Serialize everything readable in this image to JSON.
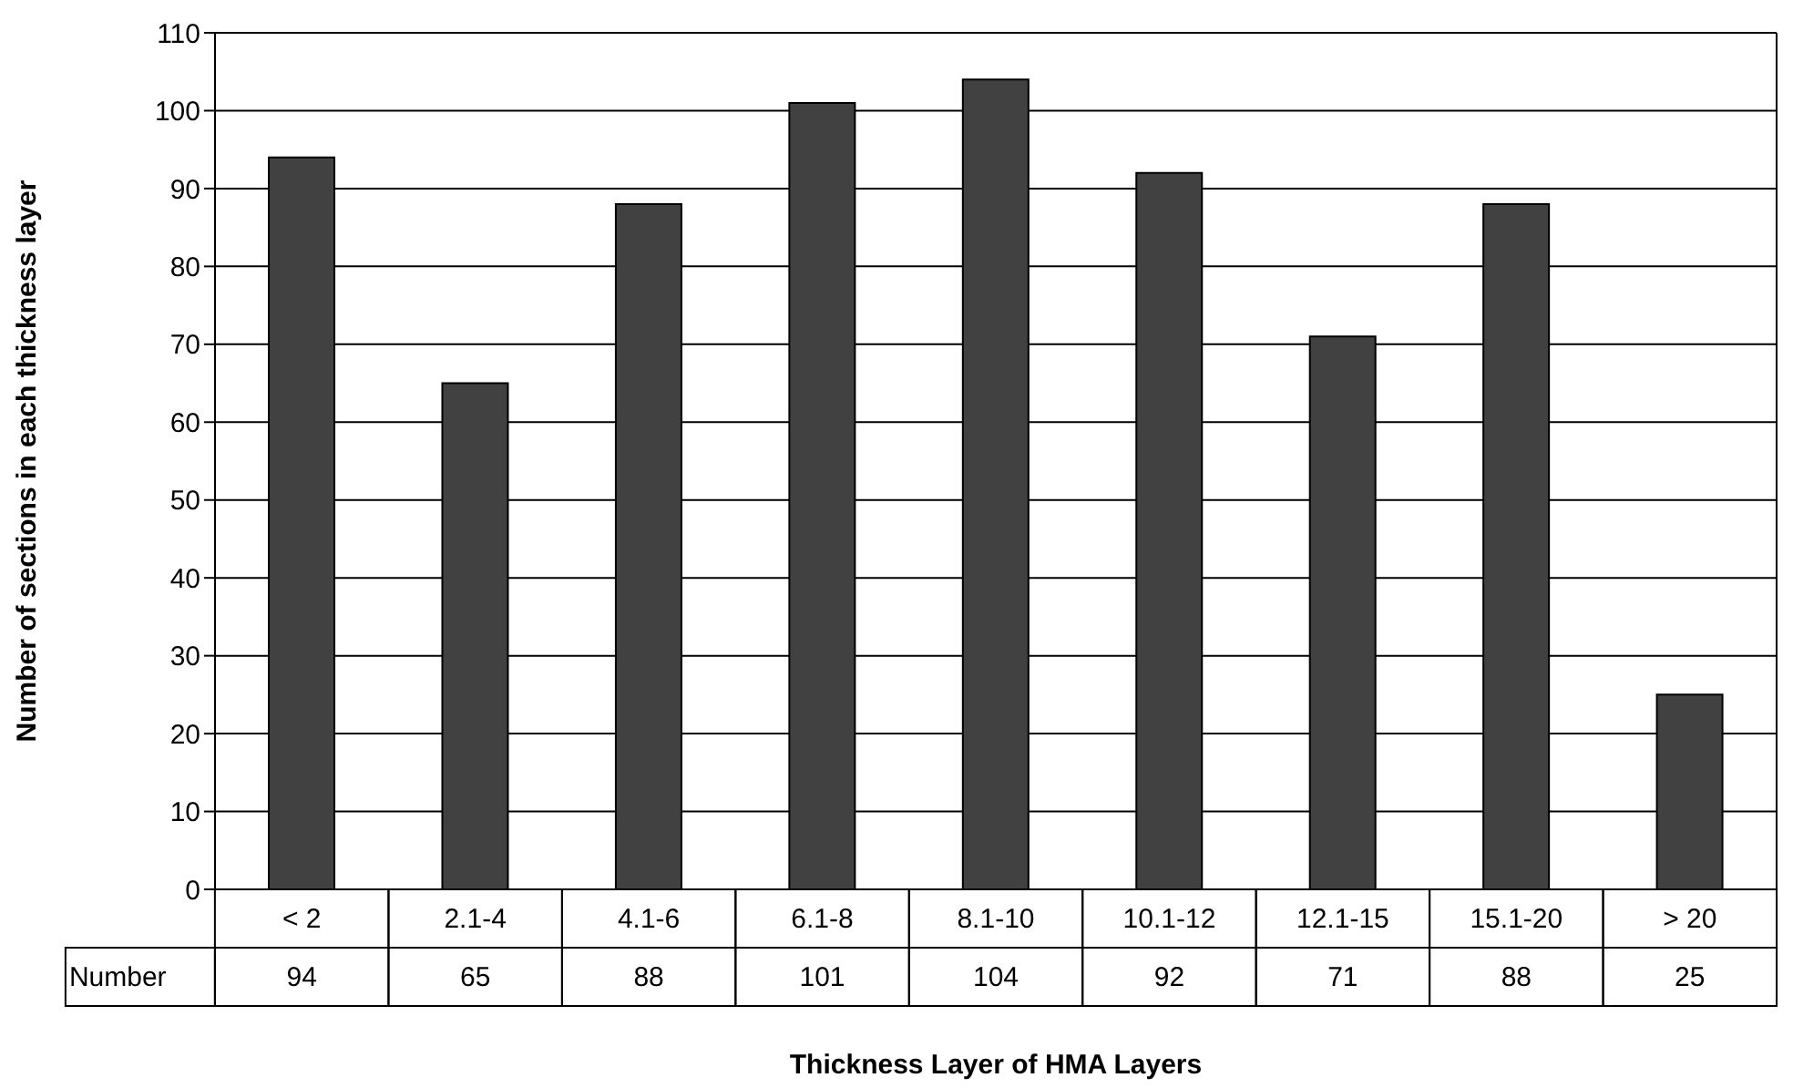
{
  "chart_data": {
    "type": "bar",
    "xlabel": "Thickness Layer of HMA Layers",
    "ylabel": "Number of sections in each thickness layer",
    "categories": [
      "< 2",
      "2.1-4",
      "4.1-6",
      "6.1-8",
      "8.1-10",
      "10.1-12",
      "12.1-15",
      "15.1-20",
      "> 20"
    ],
    "series": [
      {
        "name": "Number",
        "color": "#414141",
        "values": [
          94,
          65,
          88,
          101,
          104,
          92,
          71,
          88,
          25
        ]
      }
    ],
    "ylim": [
      0,
      110
    ],
    "yticks": [
      0,
      10,
      20,
      30,
      40,
      50,
      60,
      70,
      80,
      90,
      100,
      110
    ],
    "grid": "y",
    "data_labels": true
  }
}
